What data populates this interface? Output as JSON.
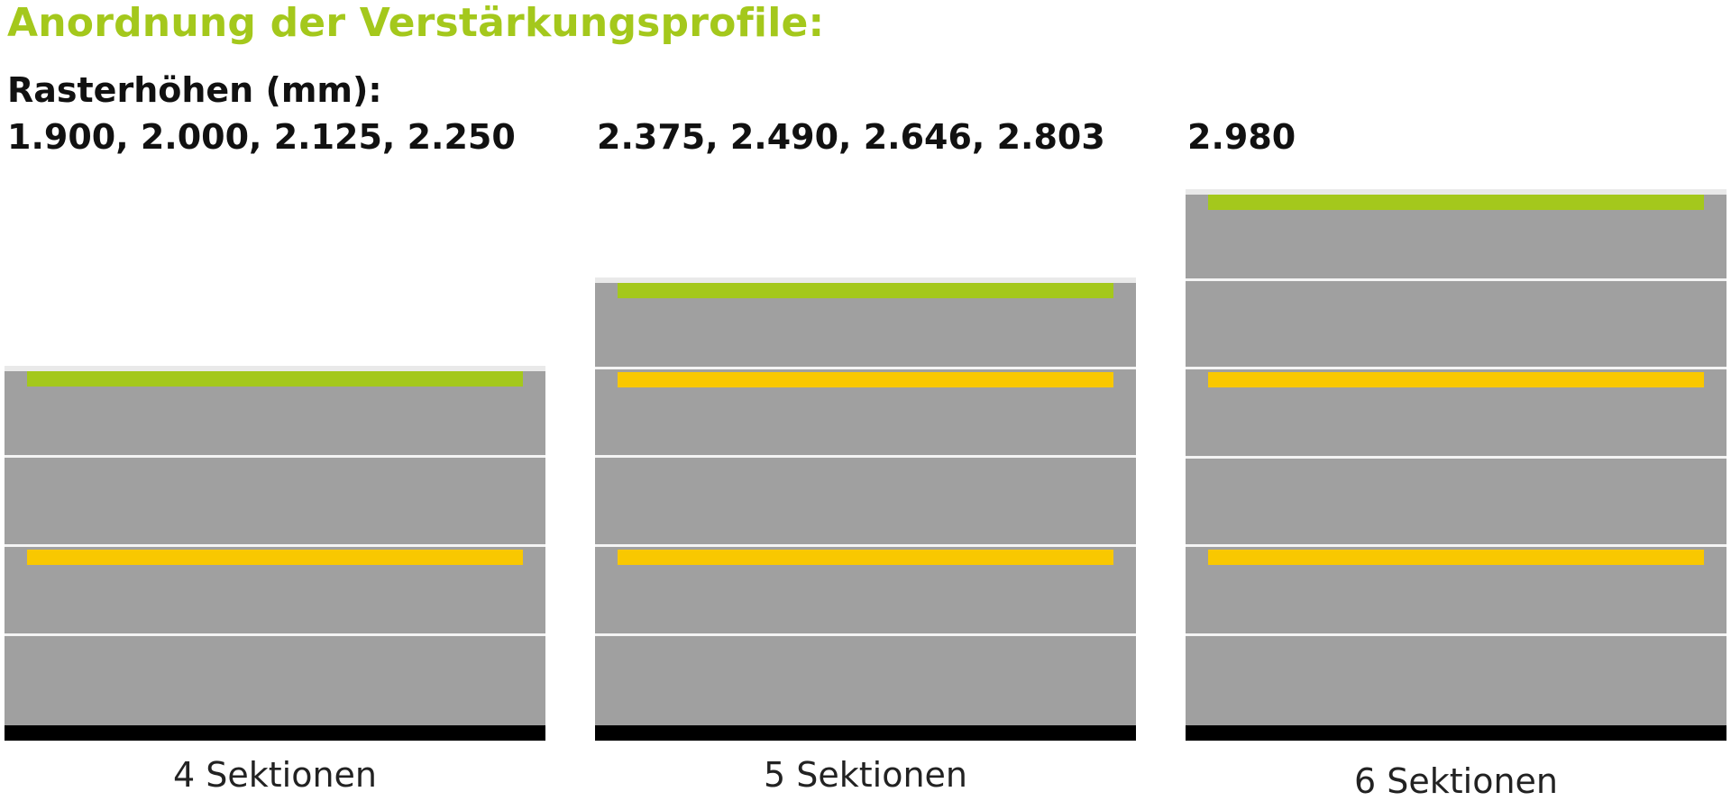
{
  "title": "Anordnung der Verstärkungsprofile:",
  "subtitle": "Rasterhöhen (mm):",
  "colors": {
    "panel": "#a0a0a0",
    "top_profile": "#a4c81c",
    "middle_profile": "#f9c800",
    "bottom_seal": "#000000",
    "divider": "#f4f4f4"
  },
  "doors": [
    {
      "heights": "1.900, 2.000, 2.125, 2.250",
      "caption": "4 Sektionen",
      "sections": 4,
      "profiles": [
        "top_profile",
        "middle_profile"
      ]
    },
    {
      "heights": "2.375, 2.490, 2.646, 2.803",
      "caption": "5 Sektionen",
      "sections": 5,
      "profiles": [
        "top_profile",
        "middle_profile",
        "middle_profile"
      ]
    },
    {
      "heights": "2.980",
      "caption": "6 Sektionen",
      "sections": 6,
      "profiles": [
        "top_profile",
        "middle_profile",
        "middle_profile"
      ]
    }
  ]
}
